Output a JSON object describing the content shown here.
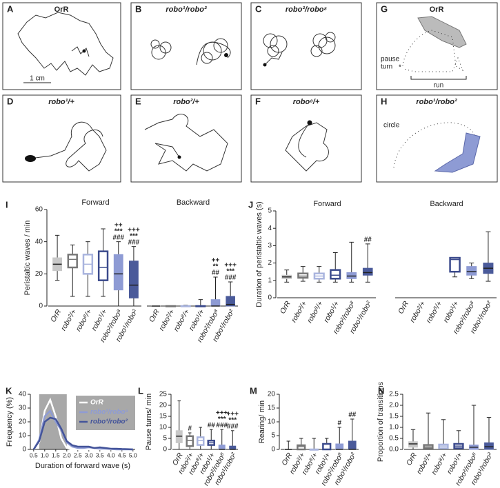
{
  "panels": [
    {
      "letter": "A",
      "title": "OrR",
      "notes": [
        "1 cm"
      ]
    },
    {
      "letter": "B",
      "title": "robo¹/robo²"
    },
    {
      "letter": "C",
      "title": "robo²/robo⁸"
    },
    {
      "letter": "G",
      "title": "OrR",
      "notes": [
        "pause",
        "turn",
        "*",
        "run"
      ]
    },
    {
      "letter": "D",
      "title": "robo¹/+"
    },
    {
      "letter": "E",
      "title": "robo²/+"
    },
    {
      "letter": "F",
      "title": "robo⁸/+"
    },
    {
      "letter": "H",
      "title": "robo¹/robo²",
      "notes": [
        "circle"
      ]
    }
  ],
  "chart_data": [
    {
      "type": "box",
      "panel": "I",
      "ylabel": "Peristaltic waves / min",
      "ylim": [
        0,
        60
      ],
      "yticks": [
        0,
        20,
        40,
        60
      ],
      "categories": [
        "OrR",
        "robo²/+",
        "robo⁸/+",
        "robo¹/+",
        "robo²/robo⁸",
        "robo¹/robo²"
      ],
      "colors": [
        "#c8c8c8",
        "#777777",
        "#a9b4de",
        "#3b4a8c",
        "#8e9bd4",
        "#4a5a9a"
      ],
      "filled": [
        true,
        false,
        false,
        false,
        true,
        true
      ],
      "groups": [
        {
          "name": "Forward",
          "boxes": [
            {
              "min": 16,
              "q1": 22,
              "median": 26,
              "q3": 30,
              "max": 44
            },
            {
              "min": 6,
              "q1": 24,
              "median": 29,
              "q3": 32,
              "max": 38
            },
            {
              "min": 6,
              "q1": 20,
              "median": 26,
              "q3": 32,
              "max": 40
            },
            {
              "min": 6,
              "q1": 16,
              "median": 24,
              "q3": 34,
              "max": 48
            },
            {
              "min": 0,
              "q1": 10,
              "median": 20,
              "q3": 32,
              "max": 40,
              "labels": [
                "++",
                "***",
                "###"
              ]
            },
            {
              "min": 0,
              "q1": 5,
              "median": 13,
              "q3": 28,
              "max": 37,
              "labels": [
                "+++",
                "***",
                "###"
              ]
            }
          ]
        },
        {
          "name": "Backward",
          "boxes": [
            {
              "min": 0,
              "q1": 0,
              "median": 0,
              "q3": 0,
              "max": 0
            },
            {
              "min": 0,
              "q1": 0,
              "median": 0,
              "q3": 0,
              "max": 0
            },
            {
              "min": 0,
              "q1": 0,
              "median": 0,
              "q3": 0,
              "max": 0.5
            },
            {
              "min": 0,
              "q1": 0,
              "median": 0,
              "q3": 0,
              "max": 4
            },
            {
              "min": 0,
              "q1": 0,
              "median": 0,
              "q3": 4,
              "max": 18,
              "labels": [
                "++",
                "**",
                "##"
              ]
            },
            {
              "min": 0,
              "q1": 0,
              "median": 1,
              "q3": 6,
              "max": 15,
              "labels": [
                "+++",
                "***",
                "###"
              ]
            }
          ]
        }
      ]
    },
    {
      "type": "box",
      "panel": "J",
      "ylabel": "Duration of peristaltic waves (s)",
      "ylim": [
        0,
        5
      ],
      "yticks": [
        0,
        1,
        2,
        3,
        4,
        5
      ],
      "categories": [
        "OrR",
        "robo²/+",
        "robo⁸/+",
        "robo¹/+",
        "robo²/robo⁸",
        "robo¹/robo²"
      ],
      "colors": [
        "#c8c8c8",
        "#777777",
        "#a9b4de",
        "#3b4a8c",
        "#8e9bd4",
        "#4a5a9a"
      ],
      "filled": [
        true,
        false,
        false,
        false,
        true,
        true
      ],
      "groups": [
        {
          "name": "Forward",
          "boxes": [
            {
              "min": 0.9,
              "q1": 1.1,
              "median": 1.2,
              "q3": 1.3,
              "max": 1.6
            },
            {
              "min": 0.95,
              "q1": 1.15,
              "median": 1.25,
              "q3": 1.4,
              "max": 1.8
            },
            {
              "min": 0.9,
              "q1": 1.1,
              "median": 1.25,
              "q3": 1.4,
              "max": 1.8
            },
            {
              "min": 0.9,
              "q1": 1.1,
              "median": 1.3,
              "q3": 1.6,
              "max": 2.6
            },
            {
              "min": 0.9,
              "q1": 1.1,
              "median": 1.25,
              "q3": 1.45,
              "max": 3.2
            },
            {
              "min": 0.9,
              "q1": 1.3,
              "median": 1.45,
              "q3": 1.7,
              "max": 3.1,
              "labels": [
                "##"
              ]
            }
          ]
        },
        {
          "name": "Backward",
          "boxes": [
            null,
            null,
            null,
            {
              "min": 1.2,
              "q1": 1.5,
              "median": 2.2,
              "q3": 2.3,
              "max": 2.3
            },
            {
              "min": 1.1,
              "q1": 1.3,
              "median": 1.5,
              "q3": 1.8,
              "max": 2
            },
            {
              "min": 0.95,
              "q1": 1.4,
              "median": 1.7,
              "q3": 2,
              "max": 3.8
            }
          ]
        }
      ]
    },
    {
      "type": "line",
      "panel": "K",
      "ylabel": "Frequency (%)",
      "xlabel": "Duration of forward wave (s)",
      "xlim": [
        0.35,
        5.1
      ],
      "xticks": [
        0.5,
        {
          "value": 1,
          "label": "1.0"
        },
        1.5,
        {
          "value": 2,
          "label": "2.0"
        },
        2.5,
        {
          "value": 3,
          "label": "3.0"
        },
        3.5,
        {
          "value": 4,
          "label": "4.0"
        },
        4.5,
        {
          "value": 5,
          "label": "5.0"
        }
      ],
      "ylim": [
        0,
        40
      ],
      "yticks": [
        0,
        10,
        20,
        30,
        40
      ],
      "highlight": [
        0.75,
        2
      ],
      "x": [
        0.5,
        0.75,
        1,
        1.25,
        1.5,
        1.75,
        2,
        2.25,
        2.5,
        2.75,
        3,
        3.25,
        3.5,
        3.75,
        4,
        4.25,
        4.5,
        4.75,
        5
      ],
      "series": [
        {
          "name": "OrR",
          "color": "#ffffff",
          "values": [
            0,
            5,
            28,
            36,
            24,
            8,
            1,
            0,
            0,
            0,
            0,
            0,
            0,
            0,
            0,
            0,
            0,
            0,
            0
          ]
        },
        {
          "name": "robo²/robo⁸",
          "color": "#8e9bd4",
          "values": [
            0,
            7,
            24,
            28,
            20,
            14,
            5,
            2,
            1,
            1,
            1.5,
            1,
            0.5,
            0.5,
            0.3,
            0,
            0,
            0,
            0
          ]
        },
        {
          "name": "robo¹/robo²",
          "color": "#44549a",
          "values": [
            0,
            6,
            20,
            23,
            22,
            15,
            6,
            3,
            2,
            2,
            2,
            1,
            1.5,
            1,
            0.5,
            0.5,
            0.3,
            0.2,
            0
          ]
        }
      ]
    },
    {
      "type": "box",
      "panel": "L",
      "ylabel": "Pause turns/ min",
      "ylim": [
        0,
        25
      ],
      "yticks": [
        0,
        5,
        10,
        15,
        20,
        25
      ],
      "categories": [
        "OrR",
        "robo²/+",
        "robo⁸/+",
        "robo¹/+",
        "robo²/robo⁸",
        "robo¹/robo²"
      ],
      "colors": [
        "#c8c8c8",
        "#777777",
        "#a9b4de",
        "#3b4a8c",
        "#8e9bd4",
        "#4a5a9a"
      ],
      "filled": [
        true,
        false,
        false,
        false,
        true,
        true
      ],
      "groups": [
        {
          "boxes": [
            {
              "min": 0,
              "q1": 3,
              "median": 6,
              "q3": 8.5,
              "max": 22
            },
            {
              "min": 0,
              "q1": 1.5,
              "median": 4,
              "q3": 6,
              "max": 7.5,
              "labels": [
                "#"
              ]
            },
            {
              "min": 0,
              "q1": 2,
              "median": 4,
              "q3": 5.5,
              "max": 10
            },
            {
              "min": 0,
              "q1": 2,
              "median": 3,
              "q3": 4,
              "max": 9,
              "labels": [
                "##"
              ]
            },
            {
              "min": 0,
              "q1": 0,
              "median": 0,
              "q3": 2,
              "max": 9,
              "labels": [
                "+++",
                "***",
                "###"
              ]
            },
            {
              "min": 0,
              "q1": 0,
              "median": 0,
              "q3": 1.5,
              "max": 8.5,
              "labels": [
                "+++",
                "***",
                "###"
              ]
            }
          ]
        }
      ]
    },
    {
      "type": "box",
      "panel": "M",
      "ylabel": "Rearing/ min",
      "ylim": [
        0,
        20
      ],
      "yticks": [
        0,
        5,
        10,
        15,
        20
      ],
      "categories": [
        "OrR",
        "robo²/+",
        "robo⁸/+",
        "robo¹/+",
        "robo²/robo⁸",
        "robo¹/robo²"
      ],
      "colors": [
        "#c8c8c8",
        "#777777",
        "#a9b4de",
        "#3b4a8c",
        "#8e9bd4",
        "#4a5a9a"
      ],
      "filled": [
        true,
        false,
        false,
        false,
        true,
        true
      ],
      "groups": [
        {
          "boxes": [
            {
              "min": 0,
              "q1": 0,
              "median": 0,
              "q3": 0,
              "max": 3
            },
            {
              "min": 0,
              "q1": 0,
              "median": 1,
              "q3": 1.5,
              "max": 4
            },
            {
              "min": 0,
              "q1": 0,
              "median": 0,
              "q3": 0,
              "max": 4
            },
            {
              "min": 0,
              "q1": 0,
              "median": 0,
              "q3": 2,
              "max": 4
            },
            {
              "min": 0,
              "q1": 0,
              "median": 0,
              "q3": 2,
              "max": 8,
              "labels": [
                "#"
              ]
            },
            {
              "min": 0,
              "q1": 0,
              "median": 0,
              "q3": 3,
              "max": 11,
              "labels": [
                "##"
              ]
            }
          ]
        }
      ]
    },
    {
      "type": "box",
      "panel": "N",
      "ylabel": "Proportion of transitions",
      "ylim": [
        0,
        2.5
      ],
      "yticks": [
        {
          "value": 0,
          "label": "0.0"
        },
        0.5,
        {
          "value": 1,
          "label": "1.0"
        },
        1.5,
        {
          "value": 2,
          "label": "2.0"
        },
        2.5
      ],
      "categories": [
        "OrR",
        "robo²/+",
        "robo⁸/+",
        "robo¹/+",
        "robo²/robo⁸",
        "robo¹/robo²"
      ],
      "colors": [
        "#c8c8c8",
        "#777777",
        "#a9b4de",
        "#3b4a8c",
        "#8e9bd4",
        "#4a5a9a"
      ],
      "filled": [
        true,
        false,
        false,
        false,
        true,
        true
      ],
      "groups": [
        {
          "boxes": [
            {
              "min": 0,
              "q1": 0.1,
              "median": 0.25,
              "q3": 0.35,
              "max": 0.9
            },
            {
              "min": 0,
              "q1": 0.05,
              "median": 0.12,
              "q3": 0.2,
              "max": 1.65
            },
            {
              "min": 0,
              "q1": 0.05,
              "median": 0.15,
              "q3": 0.22,
              "max": 1.35
            },
            {
              "min": 0,
              "q1": 0.05,
              "median": 0.15,
              "q3": 0.25,
              "max": 0.85
            },
            {
              "min": 0,
              "q1": 0,
              "median": 0.1,
              "q3": 0.2,
              "max": 2
            },
            {
              "min": 0,
              "q1": 0,
              "median": 0.12,
              "q3": 0.3,
              "max": 1.45
            }
          ]
        }
      ]
    }
  ]
}
